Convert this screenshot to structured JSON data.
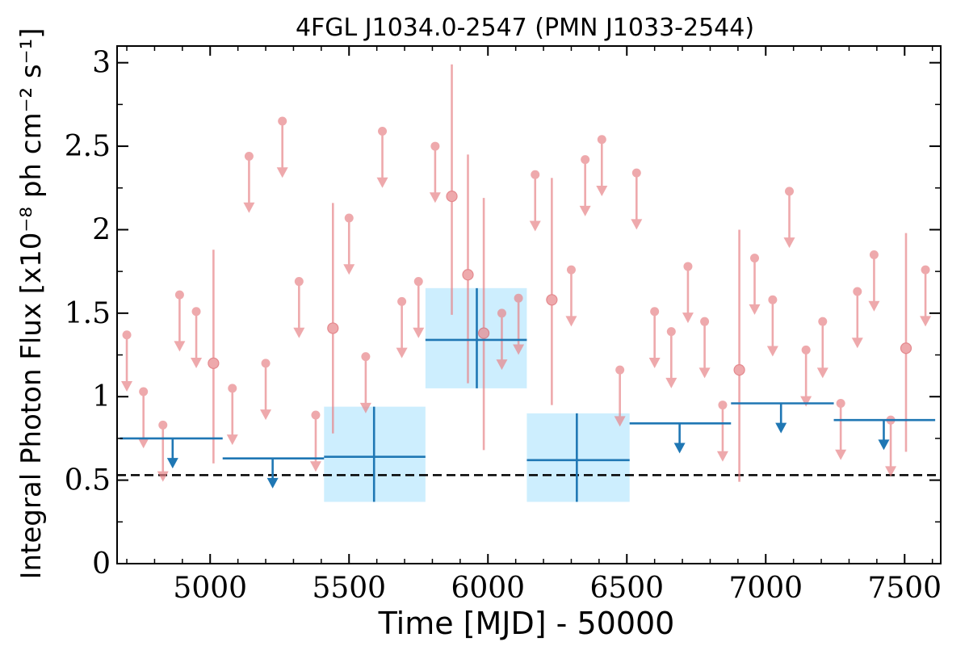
{
  "chart_data": {
    "type": "scatter",
    "title": "4FGL J1034.0-2547 (PMN J1033-2544)",
    "xlabel": "Time [MJD] - 50000",
    "ylabel": "Integral Photon Flux [x10⁻⁸ ph cm⁻² s⁻¹]",
    "xlim": [
      4665,
      7630
    ],
    "ylim": [
      0,
      3.1
    ],
    "xticks": [
      5000,
      5500,
      6000,
      6500,
      7000,
      7500
    ],
    "xtick_labels": [
      "5000",
      "5500",
      "6000",
      "6500",
      "7000",
      "7500"
    ],
    "yticks": [
      0,
      0.5,
      1,
      1.5,
      2,
      2.5,
      3
    ],
    "ytick_labels": [
      "0",
      "0.5",
      "1",
      "1.5",
      "2",
      "2.5",
      "3"
    ],
    "colors": {
      "short_bin": "#e8858a",
      "long_bin": "#1f77b4",
      "long_bin_box": "#cdeefe",
      "reference_line": "#000000"
    },
    "reference_line": {
      "y": 0.53,
      "style": "dashed"
    },
    "series": [
      {
        "bin": "short",
        "detections": [
          {
            "x": 5012,
            "y": 1.2,
            "y_low": 0.6,
            "y_high": 1.88
          },
          {
            "x": 5442,
            "y": 1.41,
            "y_low": 0.78,
            "y_high": 2.16
          },
          {
            "x": 5870,
            "y": 2.2,
            "y_low": 1.49,
            "y_high": 2.99
          },
          {
            "x": 5928,
            "y": 1.73,
            "y_low": 1.08,
            "y_high": 2.45
          },
          {
            "x": 5985,
            "y": 1.38,
            "y_low": 0.68,
            "y_high": 2.19
          },
          {
            "x": 6230,
            "y": 1.58,
            "y_low": 0.95,
            "y_high": 2.31
          },
          {
            "x": 6905,
            "y": 1.16,
            "y_low": 0.49,
            "y_high": 2.0
          },
          {
            "x": 7505,
            "y": 1.29,
            "y_low": 0.67,
            "y_high": 1.98
          }
        ],
        "upper_limits": [
          {
            "x": 4700,
            "y": 1.37
          },
          {
            "x": 4760,
            "y": 1.03
          },
          {
            "x": 4830,
            "y": 0.83
          },
          {
            "x": 4890,
            "y": 1.61
          },
          {
            "x": 4950,
            "y": 1.51
          },
          {
            "x": 5080,
            "y": 1.05
          },
          {
            "x": 5140,
            "y": 2.44
          },
          {
            "x": 5200,
            "y": 1.2
          },
          {
            "x": 5260,
            "y": 2.65
          },
          {
            "x": 5320,
            "y": 1.69
          },
          {
            "x": 5380,
            "y": 0.89
          },
          {
            "x": 5500,
            "y": 2.07
          },
          {
            "x": 5560,
            "y": 1.24
          },
          {
            "x": 5620,
            "y": 2.59
          },
          {
            "x": 5690,
            "y": 1.57
          },
          {
            "x": 5750,
            "y": 1.69
          },
          {
            "x": 5810,
            "y": 2.5
          },
          {
            "x": 6050,
            "y": 1.5
          },
          {
            "x": 6110,
            "y": 1.59
          },
          {
            "x": 6170,
            "y": 2.33
          },
          {
            "x": 6300,
            "y": 1.76
          },
          {
            "x": 6350,
            "y": 2.42
          },
          {
            "x": 6410,
            "y": 2.54
          },
          {
            "x": 6475,
            "y": 1.16
          },
          {
            "x": 6535,
            "y": 2.34
          },
          {
            "x": 6600,
            "y": 1.51
          },
          {
            "x": 6660,
            "y": 1.39
          },
          {
            "x": 6720,
            "y": 1.78
          },
          {
            "x": 6780,
            "y": 1.45
          },
          {
            "x": 6845,
            "y": 0.95
          },
          {
            "x": 6960,
            "y": 1.83
          },
          {
            "x": 7025,
            "y": 1.58
          },
          {
            "x": 7085,
            "y": 2.23
          },
          {
            "x": 7145,
            "y": 1.28
          },
          {
            "x": 7205,
            "y": 1.45
          },
          {
            "x": 7270,
            "y": 0.96
          },
          {
            "x": 7330,
            "y": 1.63
          },
          {
            "x": 7390,
            "y": 1.85
          },
          {
            "x": 7450,
            "y": 0.86
          },
          {
            "x": 7575,
            "y": 1.76
          }
        ]
      },
      {
        "bin": "long",
        "detections": [
          {
            "x": 5590,
            "x_low": 5410,
            "x_high": 5775,
            "y": 0.64,
            "y_low": 0.37,
            "y_high": 0.94
          },
          {
            "x": 5960,
            "x_low": 5775,
            "x_high": 6140,
            "y": 1.34,
            "y_low": 1.05,
            "y_high": 1.65
          },
          {
            "x": 6320,
            "x_low": 6140,
            "x_high": 6510,
            "y": 0.62,
            "y_low": 0.37,
            "y_high": 0.9
          }
        ],
        "upper_limits": [
          {
            "x": 4865,
            "x_low": 4675,
            "x_high": 5045,
            "y": 0.75
          },
          {
            "x": 5225,
            "x_low": 5045,
            "x_high": 5410,
            "y": 0.63
          },
          {
            "x": 6690,
            "x_low": 6510,
            "x_high": 6875,
            "y": 0.84
          },
          {
            "x": 7055,
            "x_low": 6875,
            "x_high": 7245,
            "y": 0.96
          },
          {
            "x": 7425,
            "x_low": 7245,
            "x_high": 7610,
            "y": 0.86
          }
        ]
      }
    ]
  }
}
